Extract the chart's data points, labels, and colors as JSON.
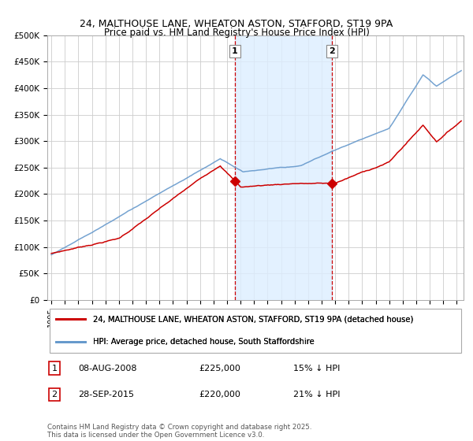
{
  "title": "24, MALTHOUSE LANE, WHEATON ASTON, STAFFORD, ST19 9PA",
  "subtitle": "Price paid vs. HM Land Registry's House Price Index (HPI)",
  "ylim": [
    0,
    500000
  ],
  "yticks": [
    0,
    50000,
    100000,
    150000,
    200000,
    250000,
    300000,
    350000,
    400000,
    450000,
    500000
  ],
  "ytick_labels": [
    "£0",
    "£50K",
    "£100K",
    "£150K",
    "£200K",
    "£250K",
    "£300K",
    "£350K",
    "£400K",
    "£450K",
    "£500K"
  ],
  "sale1_date": "08-AUG-2008",
  "sale1_price": 225000,
  "sale1_pct": "15%",
  "sale2_date": "28-SEP-2015",
  "sale2_price": 220000,
  "sale2_pct": "21%",
  "sale1_x": 2008.583,
  "sale2_x": 2015.75,
  "legend_label1": "24, MALTHOUSE LANE, WHEATON ASTON, STAFFORD, ST19 9PA (detached house)",
  "legend_label2": "HPI: Average price, detached house, South Staffordshire",
  "footer": "Contains HM Land Registry data © Crown copyright and database right 2025.\nThis data is licensed under the Open Government Licence v3.0.",
  "line_color_price": "#cc0000",
  "line_color_hpi": "#6699cc",
  "shade_color": "#ddeeff",
  "vline_color": "#cc0000",
  "background_color": "#ffffff",
  "grid_color": "#cccccc"
}
